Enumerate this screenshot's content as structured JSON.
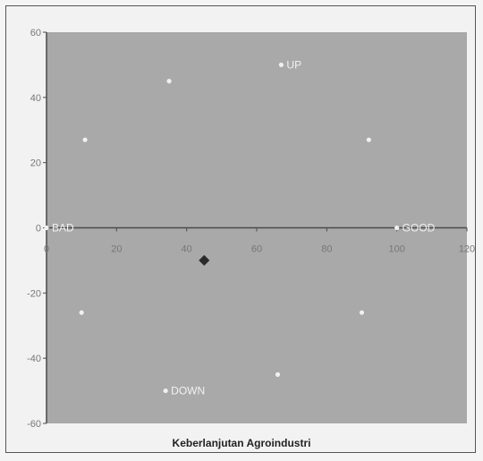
{
  "chart_data": {
    "type": "scatter",
    "title": "",
    "xlabel": "Keberlanjutan Agroindustri",
    "ylabel": "",
    "xlim": [
      0,
      120
    ],
    "ylim": [
      -60,
      60
    ],
    "xticks": [
      0,
      20,
      40,
      60,
      80,
      100,
      120
    ],
    "yticks": [
      -60,
      -40,
      -20,
      0,
      20,
      40,
      60
    ],
    "grid": false,
    "legend": "none",
    "colors": {
      "plot_background": "#a9a9a9",
      "axis": "#4a4a4a",
      "reference_points": "#f0f0f0",
      "main_point": "#2a2a2a"
    },
    "series": [
      {
        "points": [
          {
            "x": 0,
            "y": 0,
            "label": "BAD"
          },
          {
            "x": 100,
            "y": 0,
            "label": "GOOD"
          },
          {
            "x": 67,
            "y": 50,
            "label": "UP"
          },
          {
            "x": 34,
            "y": -50,
            "label": "DOWN"
          },
          {
            "x": 35,
            "y": 45,
            "label": ""
          },
          {
            "x": 11,
            "y": 27,
            "label": ""
          },
          {
            "x": 92,
            "y": 27,
            "label": ""
          },
          {
            "x": 10,
            "y": -26,
            "label": ""
          },
          {
            "x": 90,
            "y": -26,
            "label": ""
          },
          {
            "x": 66,
            "y": -45,
            "label": ""
          }
        ]
      },
      {
        "marker": "diamond",
        "points": [
          {
            "x": 45,
            "y": -10,
            "label": ""
          }
        ]
      }
    ]
  }
}
